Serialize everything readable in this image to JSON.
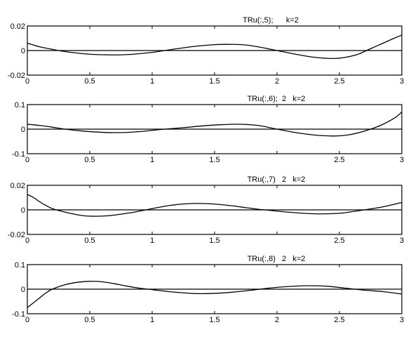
{
  "chart_data": [
    {
      "type": "line",
      "title": "TRu(:,5);      k=2",
      "xlim": [
        0,
        3
      ],
      "ylim": [
        -0.02,
        0.02
      ],
      "xticks": [
        0,
        0.5,
        1,
        1.5,
        2,
        2.5,
        3
      ],
      "xtick_labels": [
        "0",
        "0.5",
        "1",
        "1.5",
        "2",
        "2.5",
        "3"
      ],
      "yticks": [
        -0.02,
        0,
        0.02
      ],
      "ytick_labels": [
        "-0.02",
        "0",
        "0.02"
      ],
      "zero_line": true,
      "grid": false,
      "x": [
        0,
        0.1,
        0.2,
        0.25,
        0.35,
        0.5,
        0.65,
        0.75,
        0.85,
        1.0,
        1.1,
        1.2,
        1.35,
        1.5,
        1.65,
        1.75,
        1.85,
        2.0,
        2.15,
        2.3,
        2.45,
        2.55,
        2.65,
        2.75,
        2.85,
        2.95,
        3.0
      ],
      "y": [
        0.006,
        0.003,
        0.001,
        0.0,
        -0.0015,
        -0.003,
        -0.0035,
        -0.0035,
        -0.003,
        -0.0015,
        0.0,
        0.0015,
        0.0035,
        0.0048,
        0.005,
        0.0045,
        0.003,
        0.0,
        -0.003,
        -0.0055,
        -0.0065,
        -0.0055,
        -0.003,
        0.0015,
        0.006,
        0.0105,
        0.0125
      ]
    },
    {
      "type": "line",
      "title": "TRu(:,6);  2   k=2",
      "xlim": [
        0,
        3
      ],
      "ylim": [
        -0.1,
        0.1
      ],
      "xticks": [
        0,
        0.5,
        1,
        1.5,
        2,
        2.5,
        3
      ],
      "xtick_labels": [
        "0",
        "0.5",
        "1",
        "1.5",
        "",
        "2.5",
        "3"
      ],
      "yticks": [
        -0.1,
        0,
        0.1
      ],
      "ytick_labels": [
        "-0.1",
        "0",
        "0.1"
      ],
      "zero_line": true,
      "grid": false,
      "x": [
        0,
        0.1,
        0.2,
        0.3,
        0.45,
        0.6,
        0.75,
        0.9,
        1.0,
        1.1,
        1.25,
        1.4,
        1.55,
        1.7,
        1.85,
        2.0,
        2.15,
        2.3,
        2.45,
        2.55,
        2.65,
        2.75,
        2.85,
        2.95,
        3.0
      ],
      "y": [
        0.02,
        0.015,
        0.008,
        0.0,
        -0.008,
        -0.013,
        -0.014,
        -0.01,
        -0.005,
        0.0,
        0.006,
        0.013,
        0.018,
        0.02,
        0.015,
        0.0,
        -0.014,
        -0.024,
        -0.028,
        -0.025,
        -0.015,
        0.0,
        0.02,
        0.048,
        0.07
      ]
    },
    {
      "type": "line",
      "title": "TRu(:,7)   2   k=2",
      "xlim": [
        0,
        3
      ],
      "ylim": [
        -0.02,
        0.02
      ],
      "xticks": [
        0,
        0.5,
        1,
        1.5,
        2,
        2.5,
        3
      ],
      "xtick_labels": [
        "0",
        "0.5",
        "1",
        "1.5",
        "",
        "2.5",
        "3"
      ],
      "yticks": [
        -0.02,
        0,
        0.02
      ],
      "ytick_labels": [
        "-0.02",
        "0",
        "0.02"
      ],
      "zero_line": true,
      "grid": false,
      "x": [
        0,
        0.05,
        0.1,
        0.15,
        0.2,
        0.25,
        0.35,
        0.45,
        0.55,
        0.65,
        0.75,
        0.85,
        0.95,
        1.05,
        1.15,
        1.25,
        1.35,
        1.45,
        1.55,
        1.65,
        1.75,
        1.85,
        1.95,
        2.05,
        2.2,
        2.35,
        2.5,
        2.6,
        2.7,
        2.85,
        3.0
      ],
      "y": [
        0.0125,
        0.01,
        0.0065,
        0.0035,
        0.001,
        -0.0005,
        -0.003,
        -0.0048,
        -0.0052,
        -0.0048,
        -0.0035,
        -0.002,
        0.0,
        0.002,
        0.0037,
        0.0048,
        0.0052,
        0.005,
        0.0043,
        0.0032,
        0.0018,
        0.0005,
        -0.0005,
        -0.0015,
        -0.0027,
        -0.0033,
        -0.0028,
        -0.0015,
        0.0,
        0.0025,
        0.006
      ]
    },
    {
      "type": "line",
      "title": "TRu(:,8)   2   k=2",
      "xlim": [
        0,
        3
      ],
      "ylim": [
        -0.1,
        0.1
      ],
      "xticks": [
        0,
        0.5,
        1,
        1.5,
        2,
        2.5,
        3
      ],
      "xtick_labels": [
        "0",
        "0.5",
        "1",
        "1.5",
        "2",
        "2.5",
        "3"
      ],
      "yticks": [
        -0.1,
        0,
        0.1
      ],
      "ytick_labels": [
        "-0.1",
        "0",
        "0.1"
      ],
      "zero_line": true,
      "grid": false,
      "x": [
        0,
        0.05,
        0.1,
        0.15,
        0.2,
        0.3,
        0.4,
        0.5,
        0.6,
        0.7,
        0.8,
        0.9,
        1.0,
        1.1,
        1.2,
        1.35,
        1.5,
        1.65,
        1.8,
        1.95,
        2.1,
        2.25,
        2.4,
        2.55,
        2.7,
        2.85,
        3.0
      ],
      "y": [
        -0.075,
        -0.055,
        -0.035,
        -0.015,
        0.0,
        0.018,
        0.028,
        0.032,
        0.03,
        0.022,
        0.012,
        0.004,
        -0.002,
        -0.008,
        -0.013,
        -0.018,
        -0.017,
        -0.012,
        -0.004,
        0.005,
        0.011,
        0.014,
        0.012,
        0.004,
        -0.004,
        -0.01,
        -0.02
      ]
    }
  ]
}
